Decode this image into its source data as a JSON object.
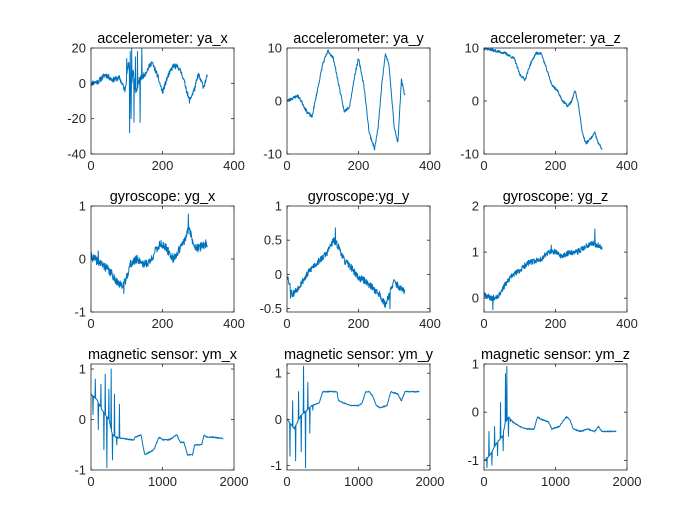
{
  "chart_data": [
    {
      "type": "line",
      "title": "accelerometer: ya_x",
      "xlim": [
        0,
        400
      ],
      "ylim": [
        -40,
        20
      ],
      "xticks": [
        0,
        200,
        400
      ],
      "yticks": [
        -40,
        -20,
        0,
        20
      ],
      "x_end": 325,
      "seed": 11,
      "noise": 1.5,
      "line_color": "#0072bd",
      "keypoints": [
        [
          0,
          0
        ],
        [
          20,
          1
        ],
        [
          40,
          5
        ],
        [
          60,
          2
        ],
        [
          80,
          3
        ],
        [
          95,
          -4
        ],
        [
          105,
          12
        ],
        [
          112,
          -5
        ],
        [
          118,
          8
        ],
        [
          125,
          -6
        ],
        [
          135,
          2
        ],
        [
          150,
          5
        ],
        [
          170,
          12
        ],
        [
          185,
          5
        ],
        [
          200,
          -5
        ],
        [
          215,
          4
        ],
        [
          230,
          10
        ],
        [
          245,
          9
        ],
        [
          255,
          5
        ],
        [
          265,
          -2
        ],
        [
          275,
          -10
        ],
        [
          290,
          -3
        ],
        [
          300,
          5
        ],
        [
          315,
          -2
        ],
        [
          325,
          4
        ]
      ],
      "spikes": [
        [
          108,
          -28
        ],
        [
          110,
          18
        ],
        [
          112,
          -20
        ],
        [
          114,
          20
        ],
        [
          120,
          -22
        ],
        [
          124,
          15
        ],
        [
          130,
          18
        ],
        [
          137,
          -22
        ],
        [
          142,
          20
        ],
        [
          100,
          14
        ]
      ]
    },
    {
      "type": "line",
      "title": "accelerometer: ya_y",
      "xlim": [
        0,
        400
      ],
      "ylim": [
        -10,
        10
      ],
      "xticks": [
        0,
        200,
        400
      ],
      "yticks": [
        -10,
        0,
        10
      ],
      "x_end": 330,
      "seed": 23,
      "noise": 0.3,
      "line_color": "#0072bd",
      "keypoints": [
        [
          0,
          0
        ],
        [
          15,
          0.5
        ],
        [
          30,
          1
        ],
        [
          40,
          0
        ],
        [
          55,
          -2
        ],
        [
          70,
          -3
        ],
        [
          85,
          2
        ],
        [
          100,
          7
        ],
        [
          115,
          9.5
        ],
        [
          130,
          8
        ],
        [
          145,
          3
        ],
        [
          160,
          -2
        ],
        [
          175,
          -1
        ],
        [
          190,
          5
        ],
        [
          200,
          8
        ],
        [
          215,
          3
        ],
        [
          230,
          -6
        ],
        [
          245,
          -9
        ],
        [
          255,
          -5
        ],
        [
          265,
          3
        ],
        [
          275,
          9
        ],
        [
          285,
          7
        ],
        [
          300,
          -5
        ],
        [
          310,
          -8
        ],
        [
          320,
          4
        ],
        [
          330,
          1
        ]
      ],
      "spikes": []
    },
    {
      "type": "line",
      "title": "accelerometer: ya_z",
      "xlim": [
        0,
        400
      ],
      "ylim": [
        -10,
        10
      ],
      "xticks": [
        0,
        200,
        400
      ],
      "yticks": [
        -10,
        0,
        10
      ],
      "x_end": 330,
      "seed": 37,
      "noise": 0.25,
      "line_color": "#0072bd",
      "keypoints": [
        [
          0,
          10
        ],
        [
          30,
          9.5
        ],
        [
          60,
          9
        ],
        [
          85,
          8
        ],
        [
          100,
          5
        ],
        [
          115,
          4
        ],
        [
          130,
          7
        ],
        [
          145,
          9
        ],
        [
          160,
          9
        ],
        [
          175,
          6
        ],
        [
          190,
          3
        ],
        [
          205,
          2
        ],
        [
          220,
          0
        ],
        [
          235,
          -1
        ],
        [
          245,
          0
        ],
        [
          255,
          2
        ],
        [
          265,
          -1
        ],
        [
          275,
          -6
        ],
        [
          285,
          -8
        ],
        [
          300,
          -7
        ],
        [
          310,
          -6
        ],
        [
          320,
          -8
        ],
        [
          330,
          -9
        ]
      ],
      "spikes": []
    },
    {
      "type": "line",
      "title": "gyroscope: yg_x",
      "xlim": [
        0,
        400
      ],
      "ylim": [
        -1,
        1
      ],
      "xticks": [
        0,
        200,
        400
      ],
      "yticks": [
        -1,
        0,
        1
      ],
      "x_end": 325,
      "seed": 41,
      "noise": 0.08,
      "line_color": "#0072bd",
      "keypoints": [
        [
          0,
          0.05
        ],
        [
          20,
          -0.05
        ],
        [
          40,
          -0.15
        ],
        [
          60,
          -0.3
        ],
        [
          80,
          -0.5
        ],
        [
          95,
          -0.45
        ],
        [
          110,
          -0.1
        ],
        [
          130,
          0
        ],
        [
          150,
          -0.1
        ],
        [
          165,
          -0.05
        ],
        [
          180,
          0.15
        ],
        [
          195,
          0.3
        ],
        [
          210,
          0.2
        ],
        [
          230,
          0
        ],
        [
          250,
          0.2
        ],
        [
          265,
          0.4
        ],
        [
          275,
          0.6
        ],
        [
          285,
          0.3
        ],
        [
          300,
          0.2
        ],
        [
          325,
          0.3
        ]
      ],
      "spikes": [
        [
          272,
          0.85
        ],
        [
          92,
          -0.65
        ],
        [
          20,
          0.15
        ]
      ]
    },
    {
      "type": "line",
      "title": "gyroscope:yg_y",
      "xlim": [
        0,
        400
      ],
      "ylim": [
        -0.55,
        1
      ],
      "xticks": [
        0,
        200,
        400
      ],
      "yticks": [
        -0.5,
        0,
        0.5,
        1
      ],
      "x_end": 330,
      "seed": 53,
      "noise": 0.05,
      "line_color": "#0072bd",
      "keypoints": [
        [
          0,
          0
        ],
        [
          15,
          -0.3
        ],
        [
          30,
          -0.2
        ],
        [
          50,
          -0.05
        ],
        [
          70,
          0.1
        ],
        [
          90,
          0.2
        ],
        [
          110,
          0.3
        ],
        [
          130,
          0.5
        ],
        [
          145,
          0.4
        ],
        [
          160,
          0.2
        ],
        [
          180,
          0.1
        ],
        [
          200,
          -0.05
        ],
        [
          220,
          -0.1
        ],
        [
          240,
          -0.2
        ],
        [
          260,
          -0.3
        ],
        [
          275,
          -0.45
        ],
        [
          285,
          -0.3
        ],
        [
          300,
          -0.1
        ],
        [
          315,
          -0.2
        ],
        [
          330,
          -0.25
        ]
      ],
      "spikes": [
        [
          135,
          0.68
        ],
        [
          10,
          -0.35
        ],
        [
          288,
          -0.5
        ]
      ]
    },
    {
      "type": "line",
      "title": "gyroscope: yg_z",
      "xlim": [
        0,
        400
      ],
      "ylim": [
        -0.3,
        2
      ],
      "xticks": [
        0,
        200,
        400
      ],
      "yticks": [
        0,
        1,
        2
      ],
      "x_end": 330,
      "seed": 67,
      "noise": 0.06,
      "line_color": "#0072bd",
      "keypoints": [
        [
          0,
          0.1
        ],
        [
          20,
          0
        ],
        [
          40,
          0.05
        ],
        [
          60,
          0.3
        ],
        [
          80,
          0.5
        ],
        [
          100,
          0.6
        ],
        [
          120,
          0.75
        ],
        [
          140,
          0.8
        ],
        [
          160,
          0.85
        ],
        [
          180,
          1.0
        ],
        [
          200,
          1.0
        ],
        [
          220,
          0.9
        ],
        [
          240,
          1.0
        ],
        [
          260,
          1.0
        ],
        [
          280,
          1.1
        ],
        [
          300,
          1.2
        ],
        [
          320,
          1.15
        ],
        [
          330,
          1.1
        ]
      ],
      "spikes": [
        [
          25,
          -0.25
        ],
        [
          310,
          1.5
        ],
        [
          188,
          1.15
        ]
      ]
    },
    {
      "type": "line",
      "title": "magnetic sensor: ym_x",
      "xlim": [
        0,
        2000
      ],
      "ylim": [
        -1,
        1.1
      ],
      "xticks": [
        0,
        1000,
        2000
      ],
      "yticks": [
        -1,
        0,
        1
      ],
      "x_end": 1850,
      "seed": 71,
      "noise": 0.012,
      "line_color": "#0072bd",
      "keypoints": [
        [
          0,
          0.5
        ],
        [
          80,
          0.4
        ],
        [
          150,
          0.2
        ],
        [
          250,
          0
        ],
        [
          300,
          -0.3
        ],
        [
          350,
          -0.35
        ],
        [
          550,
          -0.4
        ],
        [
          600,
          -0.4
        ],
        [
          620,
          -0.35
        ],
        [
          700,
          -0.3
        ],
        [
          750,
          -0.7
        ],
        [
          880,
          -0.6
        ],
        [
          950,
          -0.35
        ],
        [
          1000,
          -0.4
        ],
        [
          1100,
          -0.4
        ],
        [
          1150,
          -0.35
        ],
        [
          1200,
          -0.3
        ],
        [
          1250,
          -0.45
        ],
        [
          1300,
          -0.45
        ],
        [
          1350,
          -0.7
        ],
        [
          1420,
          -0.7
        ],
        [
          1450,
          -0.5
        ],
        [
          1550,
          -0.5
        ],
        [
          1580,
          -0.3
        ],
        [
          1620,
          -0.35
        ],
        [
          1700,
          -0.35
        ],
        [
          1850,
          -0.38
        ]
      ],
      "spikes": [
        [
          60,
          0.8
        ],
        [
          100,
          -0.2
        ],
        [
          140,
          0.7
        ],
        [
          180,
          -0.6
        ],
        [
          200,
          0.9
        ],
        [
          220,
          -0.95
        ],
        [
          250,
          0.6
        ],
        [
          280,
          1.0
        ],
        [
          300,
          -0.8
        ],
        [
          330,
          0.5
        ],
        [
          360,
          -0.5
        ],
        [
          400,
          0.3
        ],
        [
          30,
          0.1
        ]
      ]
    },
    {
      "type": "line",
      "title": "magnetic sensor: ym_y",
      "xlim": [
        0,
        2000
      ],
      "ylim": [
        -1.1,
        1.2
      ],
      "xticks": [
        0,
        1000,
        2000
      ],
      "yticks": [
        -1,
        0,
        1
      ],
      "x_end": 1850,
      "seed": 83,
      "noise": 0.012,
      "line_color": "#0072bd",
      "keypoints": [
        [
          0,
          0
        ],
        [
          100,
          -0.2
        ],
        [
          200,
          0.1
        ],
        [
          280,
          0.2
        ],
        [
          350,
          0.3
        ],
        [
          450,
          0.35
        ],
        [
          500,
          0.6
        ],
        [
          700,
          0.6
        ],
        [
          720,
          0.4
        ],
        [
          800,
          0.35
        ],
        [
          900,
          0.3
        ],
        [
          1000,
          0.3
        ],
        [
          1050,
          0.35
        ],
        [
          1100,
          0.6
        ],
        [
          1150,
          0.6
        ],
        [
          1200,
          0.5
        ],
        [
          1250,
          0.3
        ],
        [
          1300,
          0.25
        ],
        [
          1400,
          0.3
        ],
        [
          1450,
          0.6
        ],
        [
          1550,
          0.55
        ],
        [
          1600,
          0.4
        ],
        [
          1650,
          0.6
        ],
        [
          1850,
          0.6
        ]
      ],
      "spikes": [
        [
          40,
          -0.8
        ],
        [
          80,
          0.4
        ],
        [
          120,
          -0.9
        ],
        [
          160,
          0.6
        ],
        [
          200,
          -0.7
        ],
        [
          230,
          1.15
        ],
        [
          260,
          -1.05
        ],
        [
          290,
          0.8
        ],
        [
          320,
          -0.3
        ],
        [
          360,
          0.2
        ]
      ]
    },
    {
      "type": "line",
      "title": "magnetic sensor: ym_z",
      "xlim": [
        0,
        2000
      ],
      "ylim": [
        -1.2,
        1
      ],
      "xticks": [
        0,
        1000,
        2000
      ],
      "yticks": [
        -1,
        0,
        1
      ],
      "x_end": 1850,
      "seed": 97,
      "noise": 0.012,
      "line_color": "#0072bd",
      "keypoints": [
        [
          0,
          -1
        ],
        [
          80,
          -0.9
        ],
        [
          150,
          -0.7
        ],
        [
          200,
          -0.6
        ],
        [
          260,
          -0.5
        ],
        [
          300,
          -0.2
        ],
        [
          350,
          -0.1
        ],
        [
          400,
          -0.2
        ],
        [
          500,
          -0.3
        ],
        [
          600,
          -0.35
        ],
        [
          700,
          -0.35
        ],
        [
          750,
          -0.1
        ],
        [
          800,
          -0.15
        ],
        [
          900,
          -0.2
        ],
        [
          950,
          -0.35
        ],
        [
          1050,
          -0.3
        ],
        [
          1150,
          -0.1
        ],
        [
          1200,
          -0.15
        ],
        [
          1250,
          -0.35
        ],
        [
          1350,
          -0.4
        ],
        [
          1450,
          -0.35
        ],
        [
          1550,
          -0.4
        ],
        [
          1600,
          -0.3
        ],
        [
          1650,
          -0.4
        ],
        [
          1850,
          -0.4
        ]
      ],
      "spikes": [
        [
          40,
          -1.15
        ],
        [
          70,
          -0.4
        ],
        [
          110,
          -1.1
        ],
        [
          150,
          -0.3
        ],
        [
          190,
          -0.9
        ],
        [
          230,
          0.2
        ],
        [
          270,
          -0.8
        ],
        [
          300,
          0.8
        ],
        [
          320,
          0.95
        ],
        [
          340,
          -0.5
        ],
        [
          370,
          -0.2
        ]
      ]
    }
  ]
}
